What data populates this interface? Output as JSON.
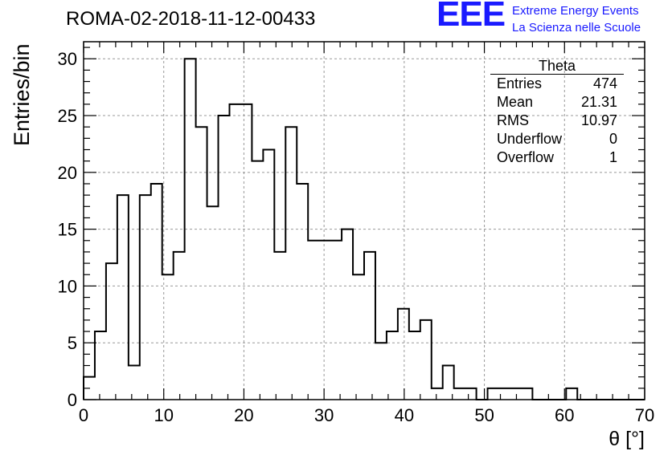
{
  "header": {
    "title": "ROMA-02-2018-11-12-00433",
    "logo_mark": "EEE",
    "logo_line1": "Extreme Energy Events",
    "logo_line2": "La Scienza nelle Scuole"
  },
  "stats_box": {
    "title": "Theta",
    "rows": [
      {
        "label": "Entries",
        "value": "474"
      },
      {
        "label": "Mean",
        "value": "21.31"
      },
      {
        "label": "RMS",
        "value": "10.97"
      },
      {
        "label": "Underflow",
        "value": "0"
      },
      {
        "label": "Overflow",
        "value": "1"
      }
    ]
  },
  "chart_data": {
    "type": "bar",
    "style": "step-histogram",
    "xlabel": "θ [°]",
    "ylabel": "Entries/bin",
    "xlim": [
      0,
      70
    ],
    "ylim": [
      0,
      31.5
    ],
    "bin_width": 1.4,
    "x_ticks": [
      0,
      10,
      20,
      30,
      40,
      50,
      60,
      70
    ],
    "y_ticks": [
      0,
      5,
      10,
      15,
      20,
      25,
      30
    ],
    "grid": true,
    "line_color": "#000000",
    "values": [
      2,
      6,
      12,
      18,
      3,
      18,
      19,
      11,
      13,
      30,
      24,
      17,
      25,
      26,
      26,
      21,
      22,
      13,
      24,
      19,
      14,
      14,
      14,
      15,
      11,
      13,
      5,
      6,
      8,
      6,
      7,
      1,
      3,
      1,
      1,
      0,
      1,
      1,
      1,
      1,
      0,
      0,
      0,
      1,
      0,
      0,
      0,
      0,
      0,
      0
    ]
  }
}
